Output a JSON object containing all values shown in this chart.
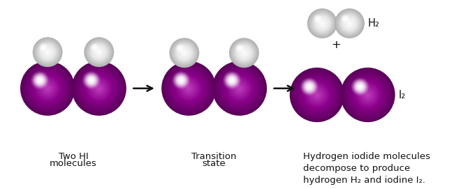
{
  "background_color": "#ffffff",
  "purple_color": "#8B008B",
  "purple_highlight": "#C040C0",
  "purple_shadow": "#5A005A",
  "white_sphere_color": "#E8E8E8",
  "white_highlight": "#FFFFFF",
  "white_shadow": "#B0B0B0",
  "arrow_color": "#111111",
  "text_color": "#111111",
  "figsize": [
    6.5,
    2.71
  ],
  "dpi": 100,
  "Ir": 0.38,
  "Hr": 0.2,
  "labels": {
    "group1_line1": "Two HI",
    "group1_line2": "molecules",
    "group2_line1": "Transition",
    "group2_line2": "state",
    "group3": "Hydrogen iodide molecules\ndecompose to produce\nhydrogen H₂ and iodine I₂.",
    "h2_label": "H₂",
    "i2_label": "I₂",
    "plus": "+"
  },
  "font_size": 9.5
}
